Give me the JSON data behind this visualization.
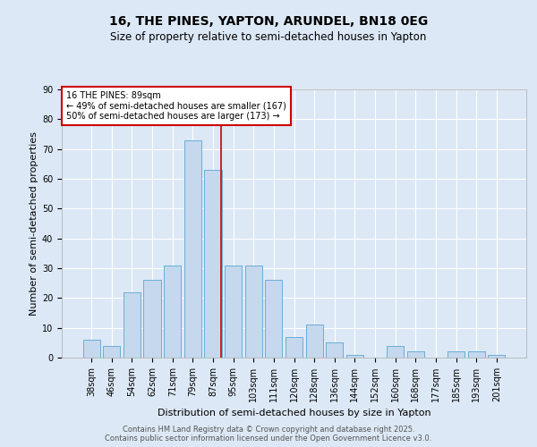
{
  "title1": "16, THE PINES, YAPTON, ARUNDEL, BN18 0EG",
  "title2": "Size of property relative to semi-detached houses in Yapton",
  "xlabel": "Distribution of semi-detached houses by size in Yapton",
  "ylabel": "Number of semi-detached properties",
  "categories": [
    "38sqm",
    "46sqm",
    "54sqm",
    "62sqm",
    "71sqm",
    "79sqm",
    "87sqm",
    "95sqm",
    "103sqm",
    "111sqm",
    "120sqm",
    "128sqm",
    "136sqm",
    "144sqm",
    "152sqm",
    "160sqm",
    "168sqm",
    "177sqm",
    "185sqm",
    "193sqm",
    "201sqm"
  ],
  "values": [
    6,
    4,
    22,
    26,
    31,
    73,
    63,
    31,
    31,
    26,
    7,
    11,
    5,
    1,
    0,
    4,
    2,
    0,
    2,
    2,
    1
  ],
  "bar_color": "#c5d8ed",
  "bar_edge_color": "#6aaed6",
  "vline_color": "#cc0000",
  "annotation_box_edge_color": "#cc0000",
  "background_color": "#dce8f5",
  "plot_background_color": "#dce8f5",
  "ylim": [
    0,
    90
  ],
  "yticks": [
    0,
    10,
    20,
    30,
    40,
    50,
    60,
    70,
    80,
    90
  ],
  "grid_color": "#ffffff",
  "title_fontsize": 10,
  "subtitle_fontsize": 8.5,
  "axis_label_fontsize": 8,
  "tick_fontsize": 7,
  "annotation_fontsize": 7,
  "footer_text": "Contains HM Land Registry data © Crown copyright and database right 2025.\nContains public sector information licensed under the Open Government Licence v3.0.",
  "footer_fontsize": 6,
  "vline_x": 6.42,
  "annotation_label": "16 THE PINES: 89sqm",
  "smaller_pct": "49%",
  "smaller_n": 167,
  "larger_pct": "50%",
  "larger_n": 173
}
